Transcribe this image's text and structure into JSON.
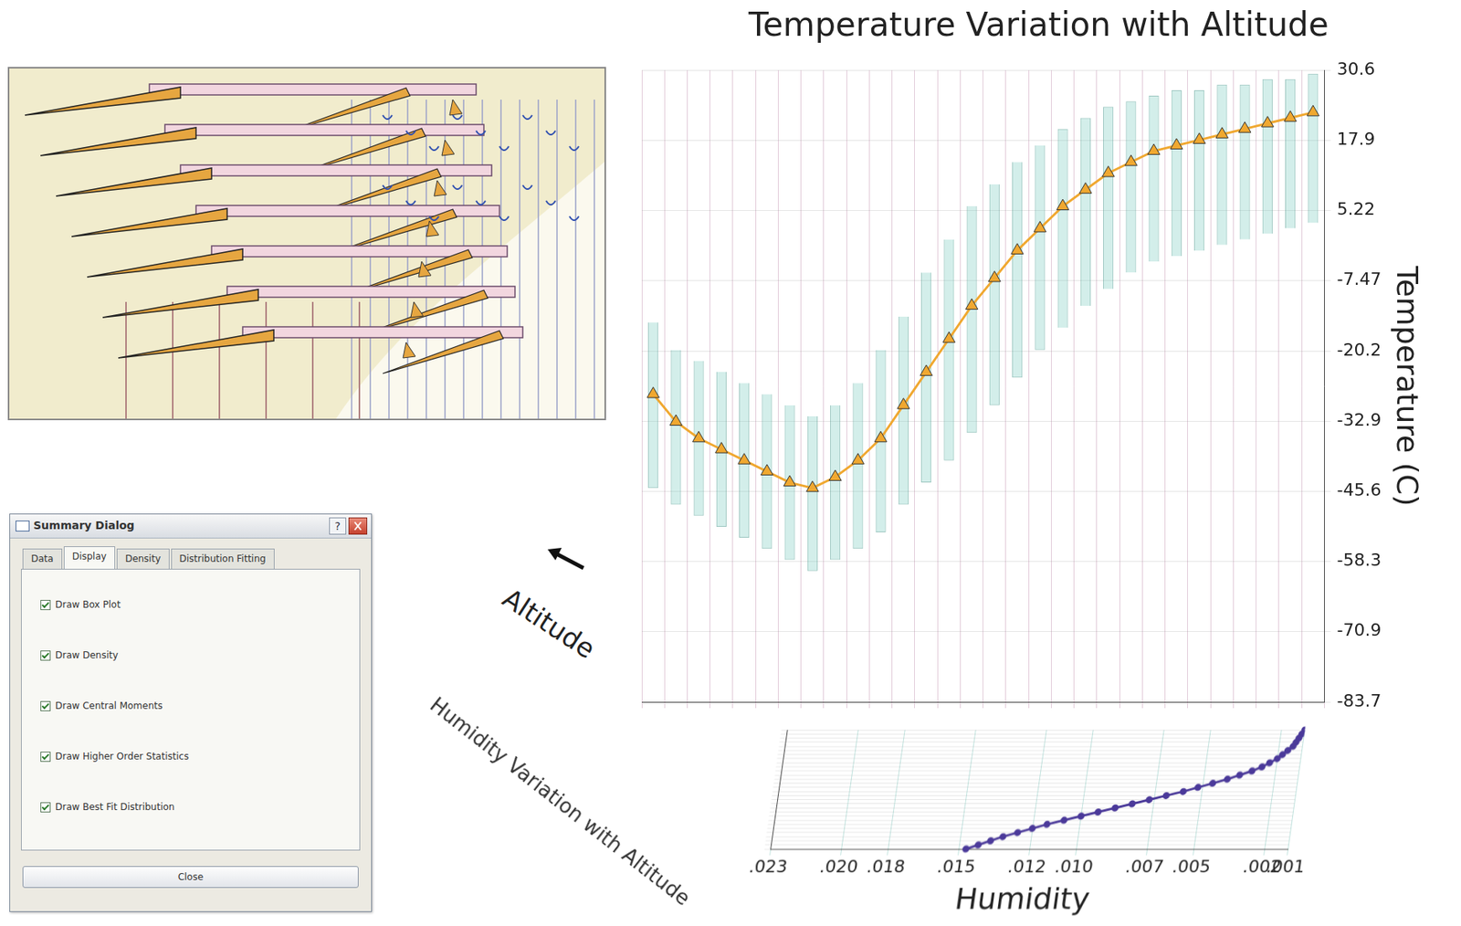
{
  "chart_data": [
    {
      "type": "line",
      "title": "Temperature Variation with Altitude",
      "x_label": "Altitude",
      "y_label": "Temperature (C)",
      "categories": [
        null,
        null,
        null,
        null,
        null,
        null,
        null,
        null,
        null,
        null,
        null,
        null,
        null,
        null,
        null,
        null,
        null,
        null,
        null,
        null,
        null,
        null,
        null,
        null,
        null,
        null,
        null,
        null,
        null,
        null
      ],
      "values": [
        -28,
        -33,
        -36,
        -38,
        -40,
        -42,
        -44,
        -45,
        -43,
        -40,
        -36,
        -30,
        -24,
        -18,
        -12,
        -7,
        -2,
        2,
        6,
        9,
        12,
        14,
        16,
        17,
        18,
        19,
        20,
        21,
        22,
        23
      ],
      "ranges": [
        [
          -45,
          -15
        ],
        [
          -48,
          -20
        ],
        [
          -50,
          -22
        ],
        [
          -52,
          -24
        ],
        [
          -54,
          -26
        ],
        [
          -56,
          -28
        ],
        [
          -58,
          -30
        ],
        [
          -60,
          -32
        ],
        [
          -58,
          -30
        ],
        [
          -56,
          -26
        ],
        [
          -53,
          -20
        ],
        [
          -48,
          -14
        ],
        [
          -44,
          -6
        ],
        [
          -40,
          0
        ],
        [
          -35,
          6
        ],
        [
          -30,
          10
        ],
        [
          -25,
          14
        ],
        [
          -20,
          17
        ],
        [
          -16,
          20
        ],
        [
          -12,
          22
        ],
        [
          -9,
          24
        ],
        [
          -6,
          25
        ],
        [
          -4,
          26
        ],
        [
          -3,
          27
        ],
        [
          -2,
          27
        ],
        [
          -1,
          28
        ],
        [
          0,
          28
        ],
        [
          1,
          29
        ],
        [
          2,
          29
        ],
        [
          3,
          30
        ]
      ],
      "ylim": [
        -83.7,
        30.6
      ],
      "yticks": [
        30.6,
        17.9,
        5.22,
        -7.47,
        -20.2,
        -32.9,
        -45.6,
        -58.3,
        -70.9,
        -83.7
      ],
      "grid": true,
      "tick_labels": "y",
      "color": "#f0a830",
      "marker": "triangle",
      "line_style": "solid"
    },
    {
      "type": "line",
      "title": "Humidity Variation with Altitude",
      "x_label": "Humidity",
      "orientation": "horizontal",
      "categories": [
        null,
        null,
        null,
        null,
        null,
        null,
        null,
        null,
        null,
        null,
        null,
        null,
        null,
        null,
        null,
        null,
        null,
        null,
        null,
        null,
        null,
        null,
        null,
        null,
        null,
        null,
        null,
        null,
        null,
        null
      ],
      "values": [
        0.001,
        0.0011,
        0.0012,
        0.0013,
        0.0014,
        0.0016,
        0.0018,
        0.002,
        0.0023,
        0.0026,
        0.003,
        0.0035,
        0.004,
        0.0046,
        0.0052,
        0.0058,
        0.0065,
        0.0072,
        0.0079,
        0.0086,
        0.0093,
        0.01,
        0.0107,
        0.0114,
        0.012,
        0.0126,
        0.0132,
        0.0137,
        0.0142,
        0.0147
      ],
      "xlim": [
        0.023,
        0.001
      ],
      "xticks": [
        {
          "value": 0.023,
          "label": ".023"
        },
        {
          "value": 0.02,
          "label": ".020"
        },
        {
          "value": 0.018,
          "label": ".018"
        },
        {
          "value": 0.015,
          "label": ".015"
        },
        {
          "value": 0.012,
          "label": ".012"
        },
        {
          "value": 0.01,
          "label": ".010"
        },
        {
          "value": 0.007,
          "label": ".007"
        },
        {
          "value": 0.005,
          "label": ".005"
        },
        {
          "value": 0.002,
          "label": ".002"
        },
        {
          "value": 0.001,
          "label": ".001"
        }
      ],
      "grid": true,
      "tick_labels": "x",
      "color": "#4b3a9a",
      "marker": "circle",
      "line_style": "solid"
    }
  ],
  "dialog": {
    "title": "Summary Dialog",
    "help_button": "?",
    "tabs": [
      "Data",
      "Display",
      "Density",
      "Distribution Fitting"
    ],
    "active_tab": "Display",
    "checkboxes": [
      {
        "label": "Draw Box Plot",
        "checked": true
      },
      {
        "label": "Draw Density",
        "checked": true
      },
      {
        "label": "Draw Central Moments",
        "checked": true
      },
      {
        "label": "Draw Higher Order Statistics",
        "checked": true
      },
      {
        "label": "Draw Best Fit Distribution",
        "checked": true
      }
    ],
    "button": "Close"
  }
}
